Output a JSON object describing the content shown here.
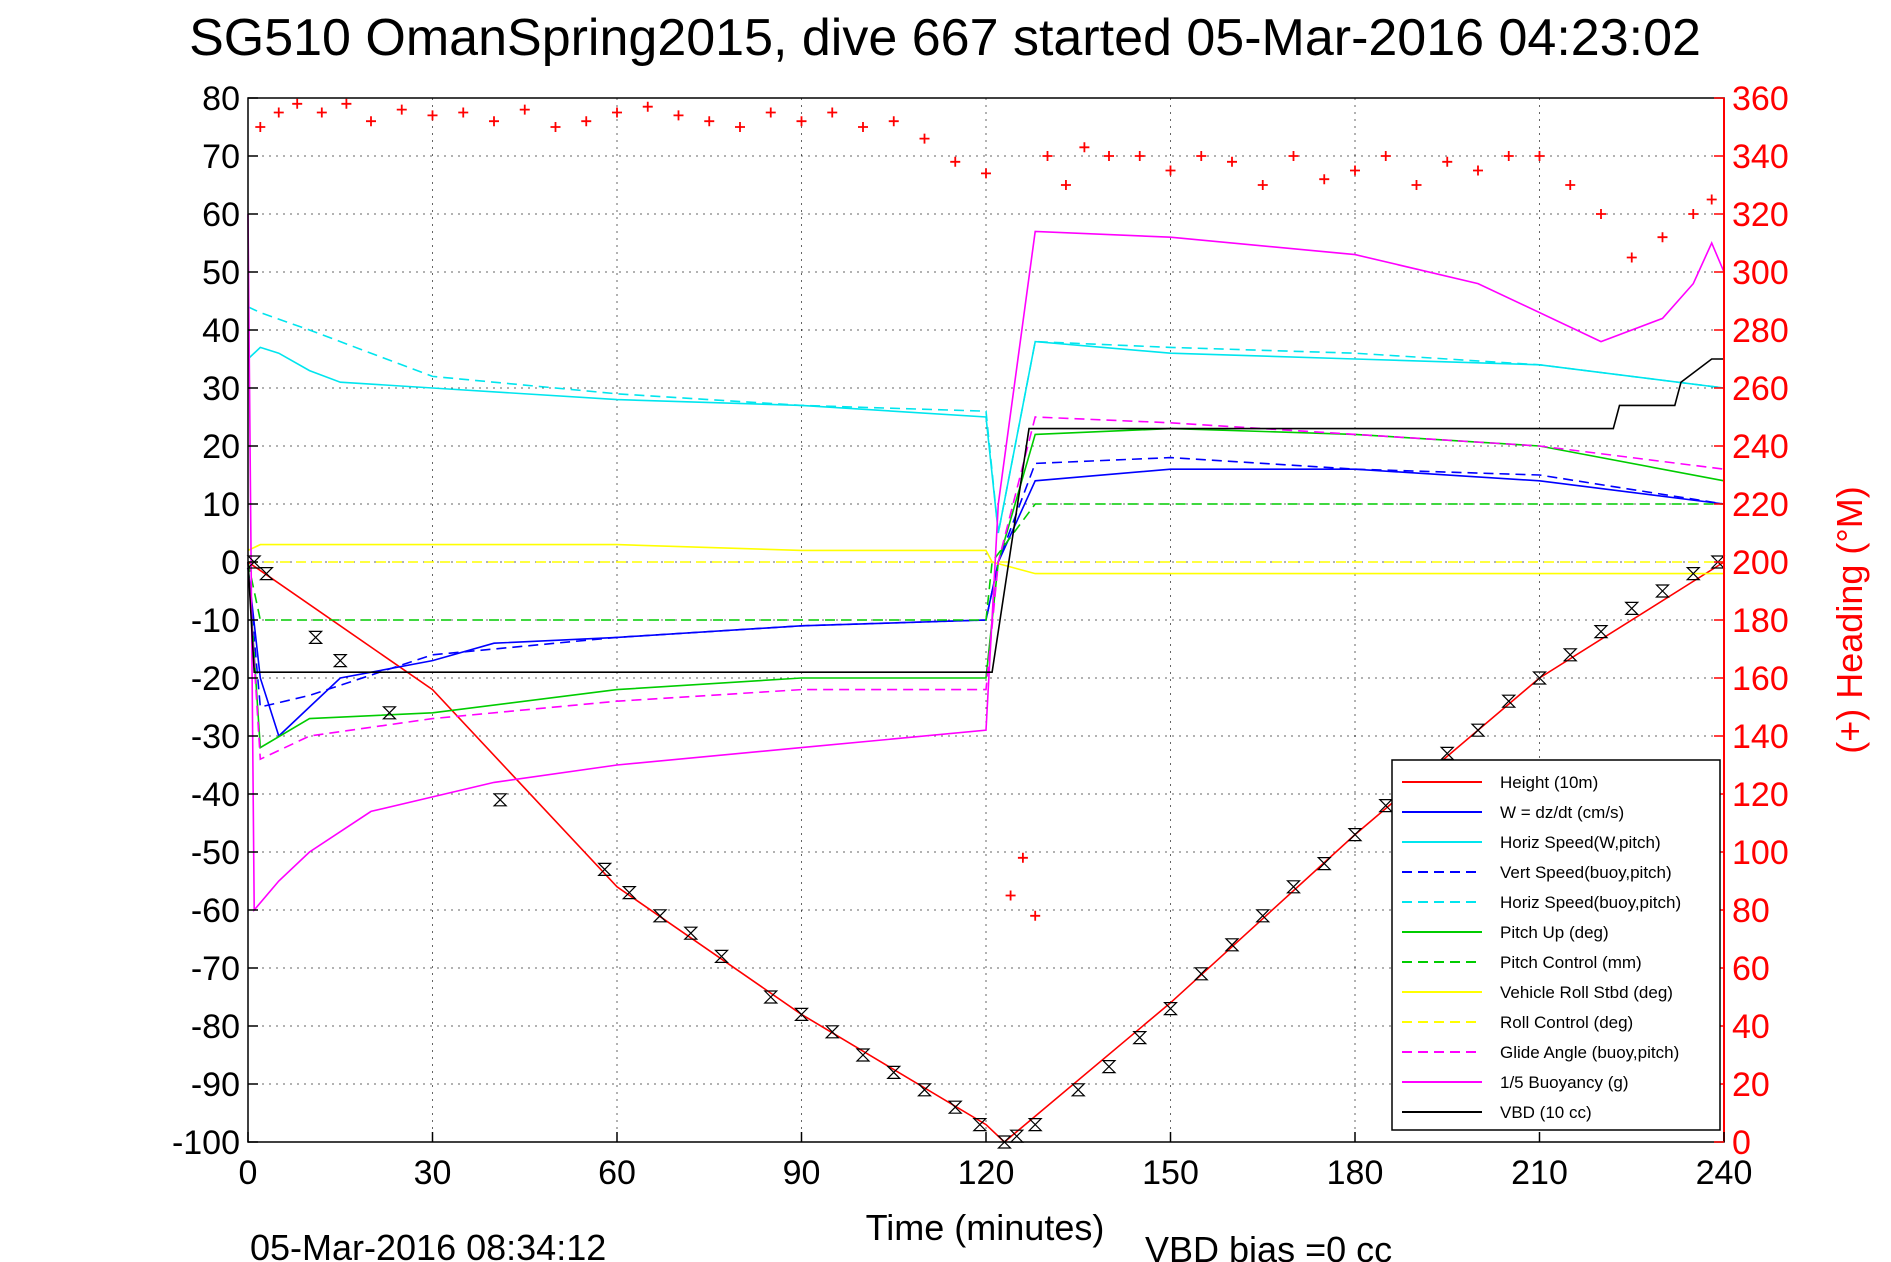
{
  "figure": {
    "title": "SG510 OmanSpring2015, dive 667 started 05-Mar-2016 04:23:02",
    "footer_time": "05-Mar-2016 08:34:12",
    "footer_vbd": "VBD bias =0 cc"
  },
  "chart_data": {
    "type": "line",
    "title": "SG510 OmanSpring2015, dive 667 started 05-Mar-2016 04:23:02",
    "xlabel": "Time (minutes)",
    "ylabel": "",
    "y2label": "(+) Heading (°M)",
    "xlim": [
      0,
      240
    ],
    "ylim": [
      -100,
      80
    ],
    "y2lim": [
      0,
      360
    ],
    "xticks": [
      "0",
      "30",
      "60",
      "90",
      "120",
      "150",
      "180",
      "210",
      "240"
    ],
    "yticks": [
      "80",
      "70",
      "60",
      "50",
      "40",
      "30",
      "20",
      "10",
      "0",
      "-10",
      "-20",
      "-30",
      "-40",
      "-50",
      "-60",
      "-70",
      "-80",
      "-90",
      "-100"
    ],
    "y2ticks": [
      "360",
      "340",
      "320",
      "300",
      "280",
      "260",
      "240",
      "220",
      "200",
      "180",
      "160",
      "140",
      "120",
      "100",
      "80",
      "60",
      "40",
      "20",
      "0"
    ],
    "grid": true,
    "legend_position": "bottom-right",
    "series": [
      {
        "name": "Height (10m)",
        "color": "#ff0000",
        "style": "solid",
        "x": [
          0,
          30,
          60,
          90,
          120,
          123,
          150,
          180,
          210,
          240
        ],
        "y": [
          0,
          -22,
          -56,
          -78,
          -97,
          -100,
          -76,
          -47,
          -20,
          0
        ]
      },
      {
        "name": "W = dz/dt (cm/s)",
        "color": "#0000ff",
        "style": "solid",
        "x": [
          0,
          2,
          5,
          10,
          15,
          30,
          40,
          60,
          90,
          120,
          122,
          128,
          150,
          180,
          210,
          240
        ],
        "y": [
          -1,
          -20,
          -30,
          -25,
          -20,
          -17,
          -14,
          -13,
          -11,
          -10,
          0,
          14,
          16,
          16,
          14,
          10
        ]
      },
      {
        "name": "Horiz Speed(W,pitch)",
        "color": "#00e5ee",
        "style": "solid",
        "x": [
          0,
          2,
          5,
          10,
          15,
          30,
          60,
          90,
          120,
          122,
          128,
          150,
          180,
          210,
          240
        ],
        "y": [
          35,
          37,
          36,
          33,
          31,
          30,
          28,
          27,
          25,
          5,
          38,
          36,
          35,
          34,
          30
        ]
      },
      {
        "name": "Vert Speed(buoy,pitch)",
        "color": "#0000ff",
        "style": "dashed",
        "x": [
          0,
          2,
          10,
          30,
          60,
          90,
          120,
          122,
          128,
          150,
          180,
          210,
          240
        ],
        "y": [
          -1,
          -25,
          -23,
          -16,
          -13,
          -11,
          -10,
          0,
          17,
          18,
          16,
          15,
          10
        ]
      },
      {
        "name": "Horiz Speed(buoy,pitch)",
        "color": "#00e5ee",
        "style": "dashed",
        "x": [
          0,
          2,
          10,
          30,
          60,
          90,
          120,
          122,
          128,
          150,
          180,
          210,
          240
        ],
        "y": [
          44,
          43,
          40,
          32,
          29,
          27,
          26,
          5,
          38,
          37,
          36,
          34,
          30
        ]
      },
      {
        "name": "Pitch Up (deg)",
        "color": "#00cc00",
        "style": "solid",
        "x": [
          0,
          2,
          10,
          30,
          60,
          90,
          120,
          122,
          128,
          150,
          180,
          210,
          240
        ],
        "y": [
          0,
          -32,
          -27,
          -26,
          -22,
          -20,
          -20,
          0,
          22,
          23,
          22,
          20,
          14
        ]
      },
      {
        "name": "Pitch Control (mm)",
        "color": "#00cc00",
        "style": "dashed",
        "x": [
          0,
          2,
          60,
          120,
          121,
          128,
          150,
          180,
          210,
          240
        ],
        "y": [
          0,
          -10,
          -10,
          -10,
          0,
          10,
          10,
          10,
          10,
          10
        ]
      },
      {
        "name": "Vehicle Roll Stbd (deg)",
        "color": "#ffff00",
        "style": "solid",
        "x": [
          0,
          2,
          30,
          60,
          90,
          120,
          121,
          128,
          150,
          180,
          210,
          240
        ],
        "y": [
          2,
          3,
          3,
          3,
          2,
          2,
          0,
          -2,
          -2,
          -2,
          -2,
          -2
        ]
      },
      {
        "name": "Roll Control (deg)",
        "color": "#ffff00",
        "style": "dashed",
        "x": [
          0,
          120,
          121,
          240
        ],
        "y": [
          0,
          0,
          0,
          0
        ]
      },
      {
        "name": "Glide Angle (buoy,pitch)",
        "color": "#ff00ff",
        "style": "dashed",
        "x": [
          0,
          2,
          10,
          30,
          60,
          90,
          120,
          122,
          128,
          150,
          180,
          210,
          240
        ],
        "y": [
          0,
          -34,
          -30,
          -27,
          -24,
          -22,
          -22,
          0,
          25,
          24,
          22,
          20,
          16
        ]
      },
      {
        "name": "1/5 Buoyancy (g)",
        "color": "#ff00ff",
        "style": "solid",
        "x": [
          0,
          1,
          5,
          10,
          20,
          40,
          60,
          90,
          120,
          122,
          128,
          150,
          180,
          200,
          220,
          230,
          235,
          238,
          240
        ],
        "y": [
          60,
          -60,
          -55,
          -50,
          -43,
          -38,
          -35,
          -32,
          -29,
          10,
          57,
          56,
          53,
          48,
          38,
          42,
          48,
          55,
          50
        ]
      },
      {
        "name": "VBD (10 cc)",
        "color": "#000000",
        "style": "solid",
        "x": [
          0,
          1,
          10,
          30,
          60,
          90,
          120,
          121,
          127,
          128,
          150,
          180,
          210,
          222,
          223,
          232,
          233,
          238,
          240
        ],
        "y": [
          0,
          -19,
          -19,
          -19,
          -19,
          -19,
          -19,
          -19,
          23,
          23,
          23,
          23,
          23,
          23,
          27,
          27,
          31,
          35,
          35
        ]
      }
    ],
    "heading_series": {
      "name": "(+) Heading",
      "color": "#ff0000",
      "axis": "right",
      "x": [
        2,
        5,
        8,
        12,
        16,
        20,
        25,
        30,
        35,
        40,
        45,
        50,
        55,
        60,
        65,
        70,
        75,
        80,
        85,
        90,
        95,
        100,
        105,
        110,
        115,
        120,
        124,
        126,
        128,
        130,
        133,
        136,
        140,
        145,
        150,
        155,
        160,
        165,
        170,
        175,
        180,
        185,
        190,
        195,
        200,
        205,
        210,
        215,
        220,
        225,
        230,
        235,
        238
      ],
      "y": [
        350,
        355,
        358,
        355,
        358,
        352,
        356,
        354,
        355,
        352,
        356,
        350,
        352,
        355,
        357,
        354,
        352,
        350,
        355,
        352,
        355,
        350,
        352,
        346,
        338,
        334,
        85,
        98,
        78,
        340,
        330,
        343,
        340,
        340,
        335,
        340,
        338,
        330,
        340,
        332,
        335,
        340,
        330,
        338,
        335,
        340,
        340,
        330,
        320,
        305,
        312,
        320,
        325
      ]
    },
    "vbd_markers": {
      "x": [
        1,
        3,
        11,
        15,
        23,
        41,
        58,
        62,
        67,
        72,
        77,
        85,
        90,
        95,
        100,
        105,
        110,
        115,
        119,
        123,
        125,
        128,
        135,
        140,
        145,
        150,
        155,
        160,
        165,
        170,
        175,
        180,
        185,
        190,
        195,
        200,
        205,
        210,
        215,
        220,
        225,
        230,
        235,
        239
      ],
      "y": [
        0,
        -2,
        -13,
        -17,
        -26,
        -41,
        -53,
        -57,
        -61,
        -64,
        -68,
        -75,
        -78,
        -81,
        -85,
        -88,
        -91,
        -94,
        -97,
        -100,
        -99,
        -97,
        -91,
        -87,
        -82,
        -77,
        -71,
        -66,
        -61,
        -56,
        -52,
        -47,
        -42,
        -38,
        -33,
        -29,
        -24,
        -20,
        -16,
        -12,
        -8,
        -5,
        -2,
        0
      ]
    }
  }
}
